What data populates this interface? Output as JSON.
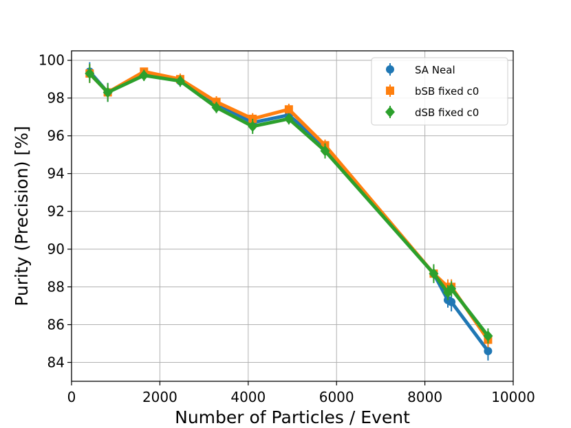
{
  "chart_data": {
    "type": "line",
    "title": "",
    "xlabel": "Number of Particles / Event",
    "ylabel": "Purity (Precision) [%]",
    "xlim": [
      0,
      10000
    ],
    "ylim": [
      83,
      100.5
    ],
    "xticks": [
      0,
      2000,
      4000,
      6000,
      8000,
      10000
    ],
    "xtick_labels": [
      "0",
      "2000",
      "4000",
      "6000",
      "8000",
      "10000"
    ],
    "yticks": [
      84,
      86,
      88,
      90,
      92,
      94,
      96,
      98,
      100
    ],
    "ytick_labels": [
      "84",
      "86",
      "88",
      "90",
      "92",
      "94",
      "96",
      "98",
      "100"
    ],
    "grid": true,
    "legend_position": "top-right",
    "series": [
      {
        "name": "SA Neal",
        "color": "#1f77b4",
        "marker": "circle",
        "x": [
          410,
          820,
          1640,
          2460,
          3280,
          4100,
          4920,
          5740,
          8200,
          8520,
          8600,
          9430
        ],
        "y": [
          99.4,
          98.3,
          99.3,
          98.9,
          97.7,
          96.7,
          97.1,
          95.4,
          88.7,
          87.3,
          87.2,
          84.6
        ],
        "err": [
          0.5,
          0.5,
          0.2,
          0.3,
          0.3,
          0.3,
          0.3,
          0.3,
          0.4,
          0.4,
          0.5,
          0.5
        ]
      },
      {
        "name": "bSB fixed c0",
        "color": "#ff7f0e",
        "marker": "square",
        "x": [
          410,
          820,
          1640,
          2460,
          3280,
          4100,
          4920,
          5740,
          8200,
          8520,
          8600,
          9430
        ],
        "y": [
          99.3,
          98.3,
          99.4,
          99.0,
          97.8,
          96.9,
          97.4,
          95.5,
          88.7,
          88.0,
          88.0,
          85.2
        ],
        "err": [
          0.5,
          0.4,
          0.2,
          0.3,
          0.3,
          0.3,
          0.3,
          0.3,
          0.4,
          0.4,
          0.4,
          0.4
        ]
      },
      {
        "name": "dSB fixed c0",
        "color": "#2ca02c",
        "marker": "diamond",
        "x": [
          410,
          820,
          1640,
          2460,
          3280,
          4100,
          4920,
          5740,
          8200,
          8520,
          8600,
          9430
        ],
        "y": [
          99.3,
          98.3,
          99.2,
          98.9,
          97.5,
          96.5,
          96.9,
          95.2,
          88.7,
          87.7,
          87.9,
          85.4
        ],
        "err": [
          0.5,
          0.5,
          0.3,
          0.3,
          0.3,
          0.4,
          0.3,
          0.4,
          0.5,
          0.4,
          0.4,
          0.4
        ]
      }
    ]
  }
}
